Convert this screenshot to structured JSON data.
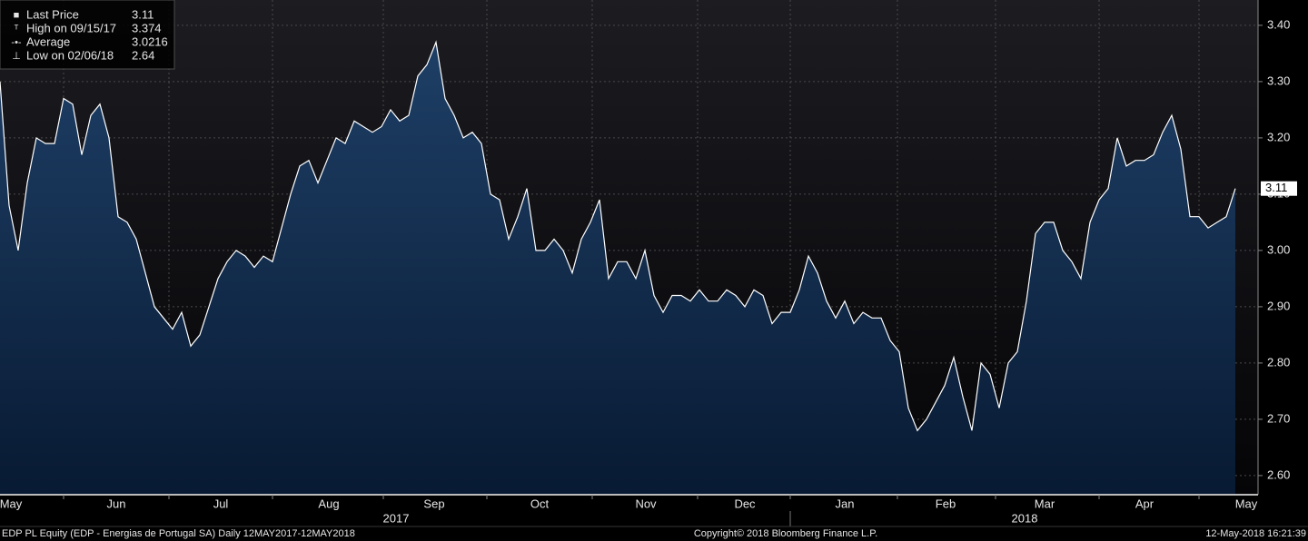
{
  "chart_data": {
    "type": "area",
    "series": [
      {
        "name": "Last Price",
        "color": "#ffffff",
        "fill": "#1d3d63",
        "values": [
          3.3,
          3.08,
          3.0,
          3.12,
          3.2,
          3.19,
          3.19,
          3.27,
          3.26,
          3.17,
          3.24,
          3.26,
          3.2,
          3.06,
          3.05,
          3.02,
          2.96,
          2.9,
          2.88,
          2.86,
          2.89,
          2.83,
          2.85,
          2.9,
          2.95,
          2.98,
          3.0,
          2.99,
          2.97,
          2.99,
          2.98,
          3.04,
          3.1,
          3.15,
          3.16,
          3.12,
          3.16,
          3.2,
          3.19,
          3.23,
          3.22,
          3.21,
          3.22,
          3.25,
          3.23,
          3.24,
          3.31,
          3.33,
          3.37,
          3.27,
          3.24,
          3.2,
          3.21,
          3.19,
          3.1,
          3.09,
          3.02,
          3.06,
          3.11,
          3.0,
          3.0,
          3.02,
          3.0,
          2.96,
          3.02,
          3.05,
          3.09,
          2.95,
          2.98,
          2.98,
          2.95,
          3.0,
          2.92,
          2.89,
          2.92,
          2.92,
          2.91,
          2.93,
          2.91,
          2.91,
          2.93,
          2.92,
          2.9,
          2.93,
          2.92,
          2.87,
          2.89,
          2.89,
          2.93,
          2.99,
          2.96,
          2.91,
          2.88,
          2.91,
          2.87,
          2.89,
          2.88,
          2.88,
          2.84,
          2.82,
          2.72,
          2.68,
          2.7,
          2.73,
          2.76,
          2.81,
          2.74,
          2.68,
          2.8,
          2.78,
          2.72,
          2.8,
          2.82,
          2.91,
          3.03,
          3.05,
          3.05,
          3.0,
          2.98,
          2.95,
          3.05,
          3.09,
          3.11,
          3.2,
          3.15,
          3.16,
          3.16,
          3.17,
          3.21,
          3.24,
          3.18,
          3.06,
          3.06,
          3.04,
          3.05,
          3.06,
          3.11
        ]
      }
    ],
    "last_label": "3.11",
    "xlim": [
      0,
      138.5
    ],
    "ylim": [
      2.566,
      3.445
    ],
    "yticks": [
      {
        "value": 2.6,
        "label": "2.60"
      },
      {
        "value": 2.7,
        "label": "2.70"
      },
      {
        "value": 2.8,
        "label": "2.80"
      },
      {
        "value": 2.9,
        "label": "2.90"
      },
      {
        "value": 3.0,
        "label": "3.00"
      },
      {
        "value": 3.1,
        "label": "3.10"
      },
      {
        "value": 3.2,
        "label": "3.20"
      },
      {
        "value": 3.3,
        "label": "3.30"
      },
      {
        "value": 3.4,
        "label": "3.40"
      }
    ],
    "xgrid": [
      7.0,
      18.6,
      30.0,
      42.2,
      53.6,
      65.2,
      76.8,
      87.0,
      98.8,
      109.6,
      121.0,
      132.0
    ],
    "xticks": [
      {
        "value": 1.2,
        "label": "May"
      },
      {
        "value": 12.8,
        "label": "Jun"
      },
      {
        "value": 24.3,
        "label": "Jul"
      },
      {
        "value": 36.2,
        "label": "Aug"
      },
      {
        "value": 47.8,
        "label": "Sep"
      },
      {
        "value": 59.4,
        "label": "Oct"
      },
      {
        "value": 71.1,
        "label": "Nov"
      },
      {
        "value": 82.0,
        "label": "Dec"
      },
      {
        "value": 93.0,
        "label": "Jan"
      },
      {
        "value": 104.1,
        "label": "Feb"
      },
      {
        "value": 115.0,
        "label": "Mar"
      },
      {
        "value": 126.0,
        "label": "Apr"
      },
      {
        "value": 137.2,
        "label": "May"
      }
    ],
    "years": [
      {
        "value": 43.6,
        "label": "2017"
      },
      {
        "value": 112.8,
        "label": "2018"
      }
    ],
    "legend": [
      {
        "name": "Last Price",
        "value": "3.11"
      },
      {
        "name": "High on 09/15/17",
        "value": "3.374"
      },
      {
        "name": "Average",
        "value": "3.0216"
      },
      {
        "name": "Low on 02/06/18",
        "value": "2.64"
      }
    ],
    "footer": {
      "left": "EDP PL Equity (EDP - Energias de Portugal SA)  Daily 12MAY2017-12MAY2018",
      "center": "Copyright© 2018 Bloomberg Finance L.P.",
      "right": "12-May-2018 16:21:39"
    },
    "grid": true
  }
}
